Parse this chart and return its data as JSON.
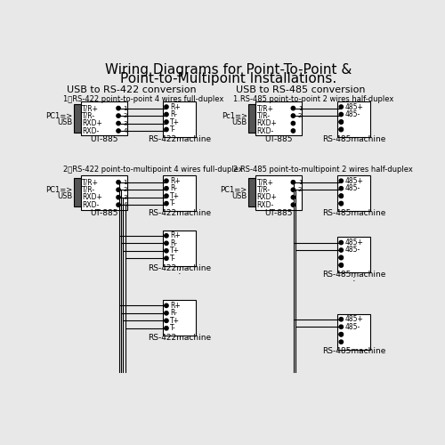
{
  "title1": "Wiring Diagrams for Point-To-Point &",
  "title2": "Point-to-Multipoint Installations.",
  "sec1": "USB to RS-422 conversion",
  "sec2": "USB to RS-485 conversion",
  "sub1a": "1、RS-422 point-to-point 4 wires full-duplex",
  "sub1b": "1.RS-485 point-to-point 2 wires half-duplex",
  "sub2a": "2、RS-422 point-to-multipoint 4 wires full-duplex",
  "sub2b": "2.RS-485 point-to-multipoint 2 wires half-duplex",
  "bg": "#e8e8e8"
}
